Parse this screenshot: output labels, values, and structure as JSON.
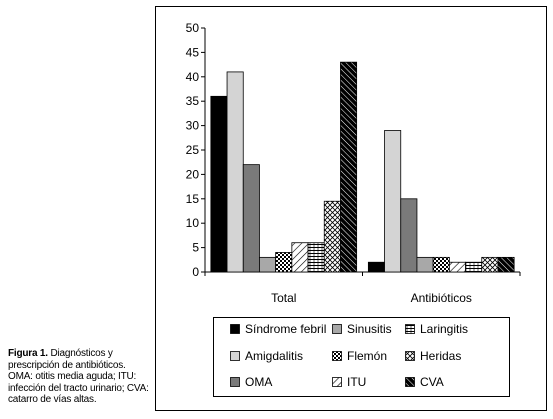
{
  "chart_data": {
    "type": "bar",
    "categories": [
      "Total",
      "Antibióticos"
    ],
    "series": [
      {
        "name": "Síndrome febril",
        "values": [
          36,
          2
        ],
        "pattern": "solid-black"
      },
      {
        "name": "Amigdalitis",
        "values": [
          41,
          29
        ],
        "pattern": "light-gray"
      },
      {
        "name": "OMA",
        "values": [
          22,
          15
        ],
        "pattern": "dark-gray"
      },
      {
        "name": "Sinusitis",
        "values": [
          3,
          3
        ],
        "pattern": "mid-gray"
      },
      {
        "name": "Flemón",
        "values": [
          4,
          3
        ],
        "pattern": "checker"
      },
      {
        "name": "ITU",
        "values": [
          6,
          2
        ],
        "pattern": "diagonal-light"
      },
      {
        "name": "Laringitis",
        "values": [
          6,
          2
        ],
        "pattern": "horizontal-lines"
      },
      {
        "name": "Heridas",
        "values": [
          14.5,
          3
        ],
        "pattern": "crosshatch"
      },
      {
        "name": "CVA",
        "values": [
          43,
          3
        ],
        "pattern": "diagonal-dark"
      }
    ],
    "legend_order": [
      "Síndrome febril",
      "Sinusitis",
      "Laringitis",
      "Amigdalitis",
      "Flemón",
      "Heridas",
      "OMA",
      "ITU",
      "CVA"
    ],
    "ylim": [
      0,
      50
    ],
    "yticks": [
      "0",
      "5",
      "10",
      "15",
      "20",
      "25",
      "30",
      "35",
      "40",
      "45",
      "50"
    ],
    "xlabel": "",
    "ylabel": "",
    "grid": false,
    "legend_position": "bottom"
  },
  "caption": {
    "title": "Figura 1.",
    "title_rest": " Diagnósticos y prescripción de antibióticos.",
    "line2": "OMA: otitis media aguda; ITU: infección del tracto urinario; CVA: catarro de vías altas."
  },
  "colors": {
    "solid_black": "#000000",
    "light_gray": "#d4d4d4",
    "dark_gray": "#7a7a7a",
    "mid_gray": "#a8a8a8"
  }
}
